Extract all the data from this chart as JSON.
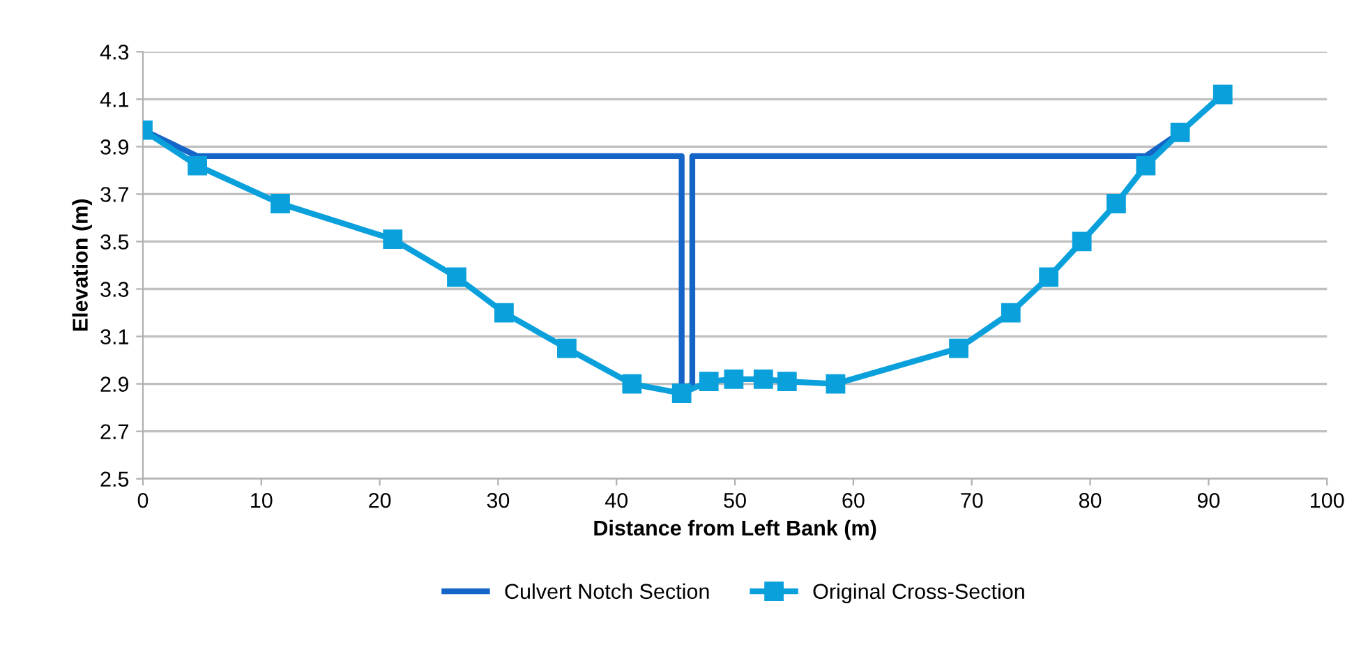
{
  "chart_data": {
    "type": "line",
    "xlabel": "Distance from Left Bank (m)",
    "ylabel": "Elevation (m)",
    "series": [
      {
        "name": "Culvert Notch Section",
        "color": "#1565c8",
        "marker": "none",
        "x": [
          0,
          4.6,
          45.5,
          45.5,
          46.4,
          46.4,
          84.7,
          87.6
        ],
        "values": [
          3.97,
          3.86,
          3.86,
          2.86,
          2.9,
          3.86,
          3.86,
          3.96
        ]
      },
      {
        "name": "Original Cross-Section",
        "color": "#0aa0dc",
        "marker": "square",
        "x": [
          0,
          4.6,
          11.6,
          21.1,
          26.5,
          30.5,
          35.8,
          41.3,
          45.5,
          47.8,
          49.9,
          52.4,
          54.4,
          58.5,
          68.9,
          73.3,
          76.5,
          79.3,
          82.2,
          84.7,
          87.6,
          91.2
        ],
        "values": [
          3.97,
          3.82,
          3.66,
          3.51,
          3.35,
          3.2,
          3.05,
          2.9,
          2.86,
          2.91,
          2.92,
          2.92,
          2.91,
          2.9,
          3.05,
          3.2,
          3.35,
          3.5,
          3.66,
          3.82,
          3.96,
          4.12
        ]
      }
    ],
    "xlim": [
      0,
      100
    ],
    "xticks": [
      0,
      10,
      20,
      30,
      40,
      50,
      60,
      70,
      80,
      90,
      100
    ],
    "ylim": [
      2.5,
      4.3
    ],
    "yticks": [
      {
        "value": 2.5,
        "label": "2.5"
      },
      {
        "value": 2.7,
        "label": "2.7"
      },
      {
        "value": 2.9,
        "label": "2.9"
      },
      {
        "value": 3.1,
        "label": "3.1"
      },
      {
        "value": 3.3,
        "label": "3.3"
      },
      {
        "value": 3.5,
        "label": "3.5"
      },
      {
        "value": 3.7,
        "label": "3.7"
      },
      {
        "value": 3.9,
        "label": "3.9"
      },
      {
        "value": 4.1,
        "label": "4.1"
      },
      {
        "value": 4.3,
        "label": "4.3"
      }
    ],
    "grid": "y",
    "legend": "bottom",
    "line_style": "solid"
  }
}
